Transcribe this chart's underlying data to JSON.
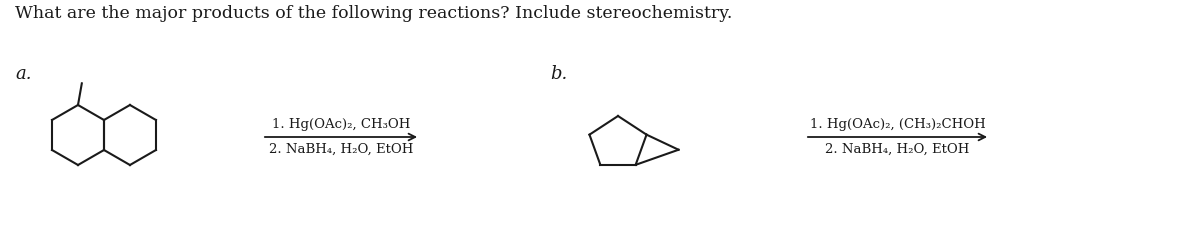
{
  "title": "What are the major products of the following reactions? Include stereochemistry.",
  "title_fontsize": 12.5,
  "label_a": "a.",
  "label_b": "b.",
  "label_fontsize": 13,
  "reaction_a_line1": "1. Hg(OAc)₂, CH₃OH",
  "reaction_a_line2": "2. NaBH₄, H₂O, EtOH",
  "reaction_b_line1": "1. Hg(OAc)₂, (CH₃)₂CHOH",
  "reaction_b_line2": "2. NaBH₄, H₂O, EtOH",
  "reaction_fontsize": 9.5,
  "bg_color": "#ffffff",
  "text_color": "#1a1a1a",
  "line_color": "#1a1a1a",
  "mol_lw": 1.5
}
